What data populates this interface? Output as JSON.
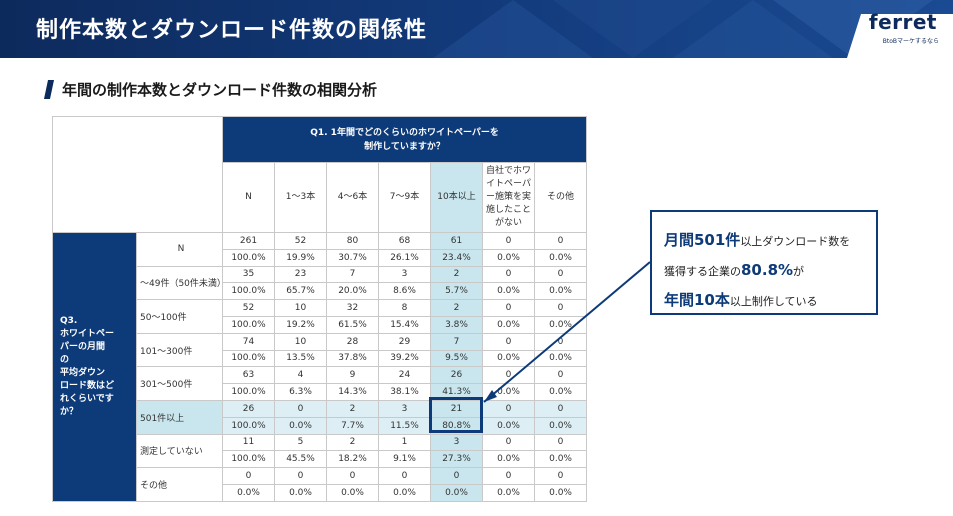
{
  "header": {
    "title": "制作本数とダウンロード件数の関係性",
    "logo": "ferret",
    "logo_sub": "BtoBマーケするなら"
  },
  "section": {
    "title": "年間の制作本数とダウンロード件数の相関分析"
  },
  "table": {
    "q1_line1": "Q1. 1年間でどのくらいのホワイトペーパーを",
    "q1_line2": "制作していますか？",
    "columns": [
      "N",
      "1〜3本",
      "4〜6本",
      "7〜9本",
      "10本以上",
      "自社でホワ\nイトペーパ\nー施策を実\n施したこと\nがない",
      "その他"
    ],
    "q3_lines": [
      "Q3.",
      "ホワイトペー",
      "パーの月間",
      "の",
      "平均ダウン",
      "ロード数はど",
      "れくらいです",
      "か？"
    ],
    "rows": [
      {
        "label": "N",
        "counts": [
          "261",
          "52",
          "80",
          "68",
          "61",
          "0",
          "0"
        ],
        "pcts": [
          "100.0%",
          "19.9%",
          "30.7%",
          "26.1%",
          "23.4%",
          "0.0%",
          "0.0%"
        ]
      },
      {
        "label": "〜49件（50件未満）",
        "counts": [
          "35",
          "23",
          "7",
          "3",
          "2",
          "0",
          "0"
        ],
        "pcts": [
          "100.0%",
          "65.7%",
          "20.0%",
          "8.6%",
          "5.7%",
          "0.0%",
          "0.0%"
        ]
      },
      {
        "label": "50〜100件",
        "counts": [
          "52",
          "10",
          "32",
          "8",
          "2",
          "0",
          "0"
        ],
        "pcts": [
          "100.0%",
          "19.2%",
          "61.5%",
          "15.4%",
          "3.8%",
          "0.0%",
          "0.0%"
        ]
      },
      {
        "label": "101〜300件",
        "counts": [
          "74",
          "10",
          "28",
          "29",
          "7",
          "0",
          "0"
        ],
        "pcts": [
          "100.0%",
          "13.5%",
          "37.8%",
          "39.2%",
          "9.5%",
          "0.0%",
          "0.0%"
        ]
      },
      {
        "label": "301〜500件",
        "counts": [
          "63",
          "4",
          "9",
          "24",
          "26",
          "0",
          "0"
        ],
        "pcts": [
          "100.0%",
          "6.3%",
          "14.3%",
          "38.1%",
          "41.3%",
          "0.0%",
          "0.0%"
        ]
      },
      {
        "label": "501件以上",
        "counts": [
          "26",
          "0",
          "2",
          "3",
          "21",
          "0",
          "0"
        ],
        "pcts": [
          "100.0%",
          "0.0%",
          "7.7%",
          "11.5%",
          "80.8%",
          "0.0%",
          "0.0%"
        ]
      },
      {
        "label": "測定していない",
        "counts": [
          "11",
          "5",
          "2",
          "1",
          "3",
          "0",
          "0"
        ],
        "pcts": [
          "100.0%",
          "45.5%",
          "18.2%",
          "9.1%",
          "27.3%",
          "0.0%",
          "0.0%"
        ]
      },
      {
        "label": "その他",
        "counts": [
          "0",
          "0",
          "0",
          "0",
          "0",
          "0",
          "0"
        ],
        "pcts": [
          "0.0%",
          "0.0%",
          "0.0%",
          "0.0%",
          "0.0%",
          "0.0%",
          "0.0%"
        ]
      }
    ]
  },
  "callout": {
    "l1_big": "月間501件",
    "l1_rest": "以上ダウンロード数を",
    "l2_pre": "獲得する企業の",
    "l2_big": "80.8%",
    "l2_post": "が",
    "l3_big": "年間10本",
    "l3_rest": "以上制作している"
  },
  "colors": {
    "navy": "#0d3a78",
    "highlight": "#c9e6ee"
  }
}
